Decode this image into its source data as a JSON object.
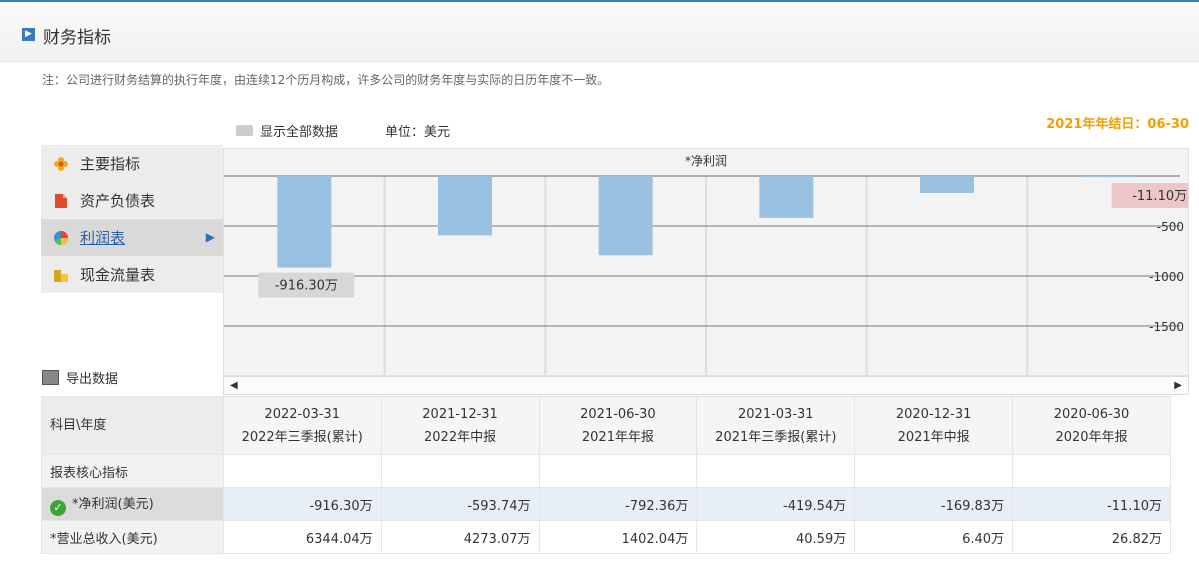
{
  "header": {
    "title": "财务指标"
  },
  "note": "注：公司进行财务结算的执行年度，由连续12个历月构成，许多公司的财务年度与实际的日历年度不一致。",
  "year_end": "2021年年结日：06-30",
  "toolbar": {
    "show_all": "显示全部数据",
    "unit": "单位：美元"
  },
  "sidebar": {
    "items": [
      {
        "label": "主要指标",
        "icon": "flower-icon"
      },
      {
        "label": "资产负债表",
        "icon": "document-icon"
      },
      {
        "label": "利润表",
        "icon": "pie-icon"
      },
      {
        "label": "现金流量表",
        "icon": "coins-icon"
      }
    ],
    "active_index": 2
  },
  "export_label": "导出数据",
  "chart_data": {
    "type": "bar",
    "title": "*净利润",
    "categories": [
      "2022-03-31",
      "2021-12-31",
      "2021-06-30",
      "2021-03-31",
      "2020-12-31",
      "2020-06-30"
    ],
    "values": [
      -916.3,
      -593.74,
      -792.36,
      -419.54,
      -169.83,
      -11.1
    ],
    "ylim": [
      -2000,
      0
    ],
    "yticks": [
      -500,
      -1000,
      -1500
    ],
    "ytick_labels": [
      "-500",
      "-1000",
      "-1500"
    ],
    "data_labels": [
      {
        "index": 0,
        "text": "-916.30万"
      },
      {
        "index": 5,
        "text": "-11.10万"
      }
    ],
    "bar_color": "#9ac1e0",
    "grid": true
  },
  "table": {
    "corner_header": "科目\\年度",
    "columns": [
      {
        "date": "2022-03-31",
        "period": "2022年三季报(累计)"
      },
      {
        "date": "2021-12-31",
        "period": "2022年中报"
      },
      {
        "date": "2021-06-30",
        "period": "2021年年报"
      },
      {
        "date": "2021-03-31",
        "period": "2021年三季报(累计)"
      },
      {
        "date": "2020-12-31",
        "period": "2021年中报"
      },
      {
        "date": "2020-06-30",
        "period": "2020年年报"
      }
    ],
    "section_label": "报表核心指标",
    "rows": [
      {
        "label": "*净利润(美元)",
        "values": [
          "-916.30万",
          "-593.74万",
          "-792.36万",
          "-419.54万",
          "-169.83万",
          "-11.10万"
        ]
      },
      {
        "label": "*营业总收入(美元)",
        "values": [
          "6344.04万",
          "4273.07万",
          "1402.04万",
          "40.59万",
          "6.40万",
          "26.82万"
        ]
      }
    ]
  }
}
